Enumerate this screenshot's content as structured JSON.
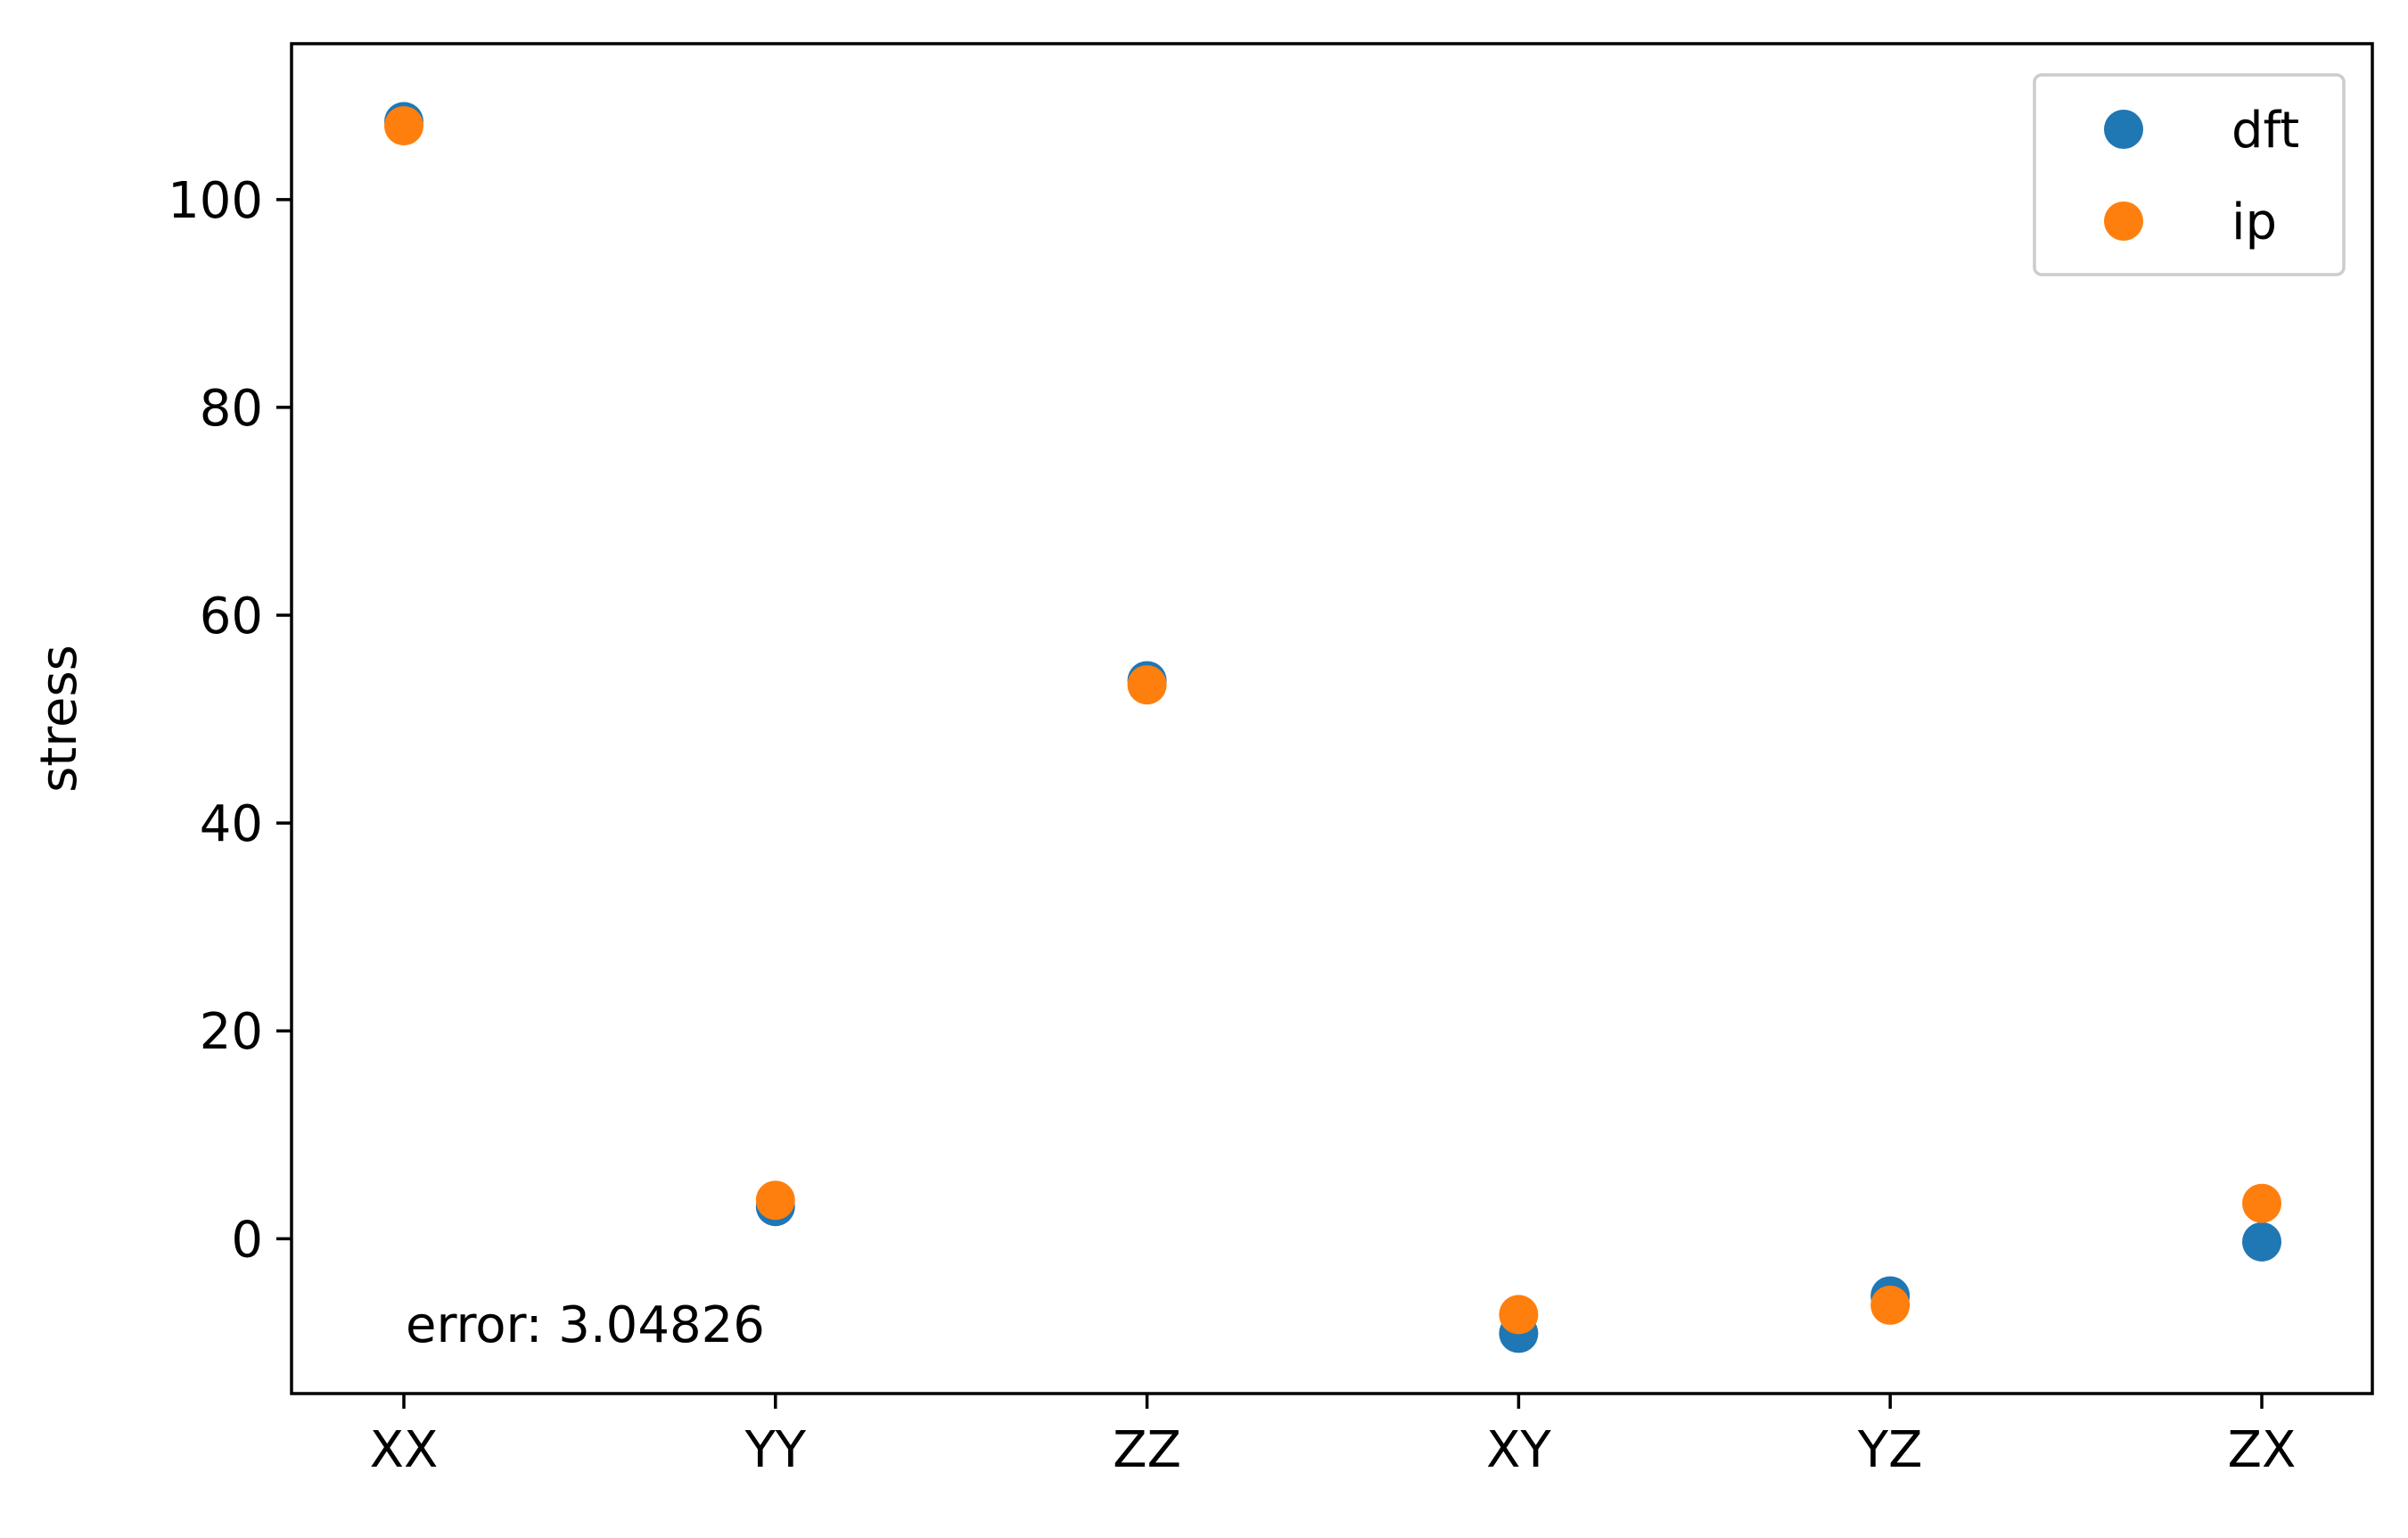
{
  "chart_data": {
    "type": "scatter",
    "categories": [
      "XX",
      "YY",
      "ZZ",
      "XY",
      "YZ",
      "ZX"
    ],
    "series": [
      {
        "name": "dft",
        "color": "#1f77b4",
        "values": [
          107.5,
          3.1,
          53.7,
          -9.1,
          -5.5,
          -0.3
        ]
      },
      {
        "name": "ip",
        "color": "#ff7f0e",
        "values": [
          107.1,
          3.7,
          53.3,
          -7.3,
          -6.4,
          3.4
        ]
      }
    ],
    "title": "",
    "xlabel": "",
    "ylabel": "stress",
    "ylim": [
      -14.9,
      115
    ],
    "yticks": [
      0,
      20,
      40,
      60,
      80,
      100
    ],
    "legend_position": "top-right",
    "grid": false,
    "annotation": "error: 3.04826"
  }
}
